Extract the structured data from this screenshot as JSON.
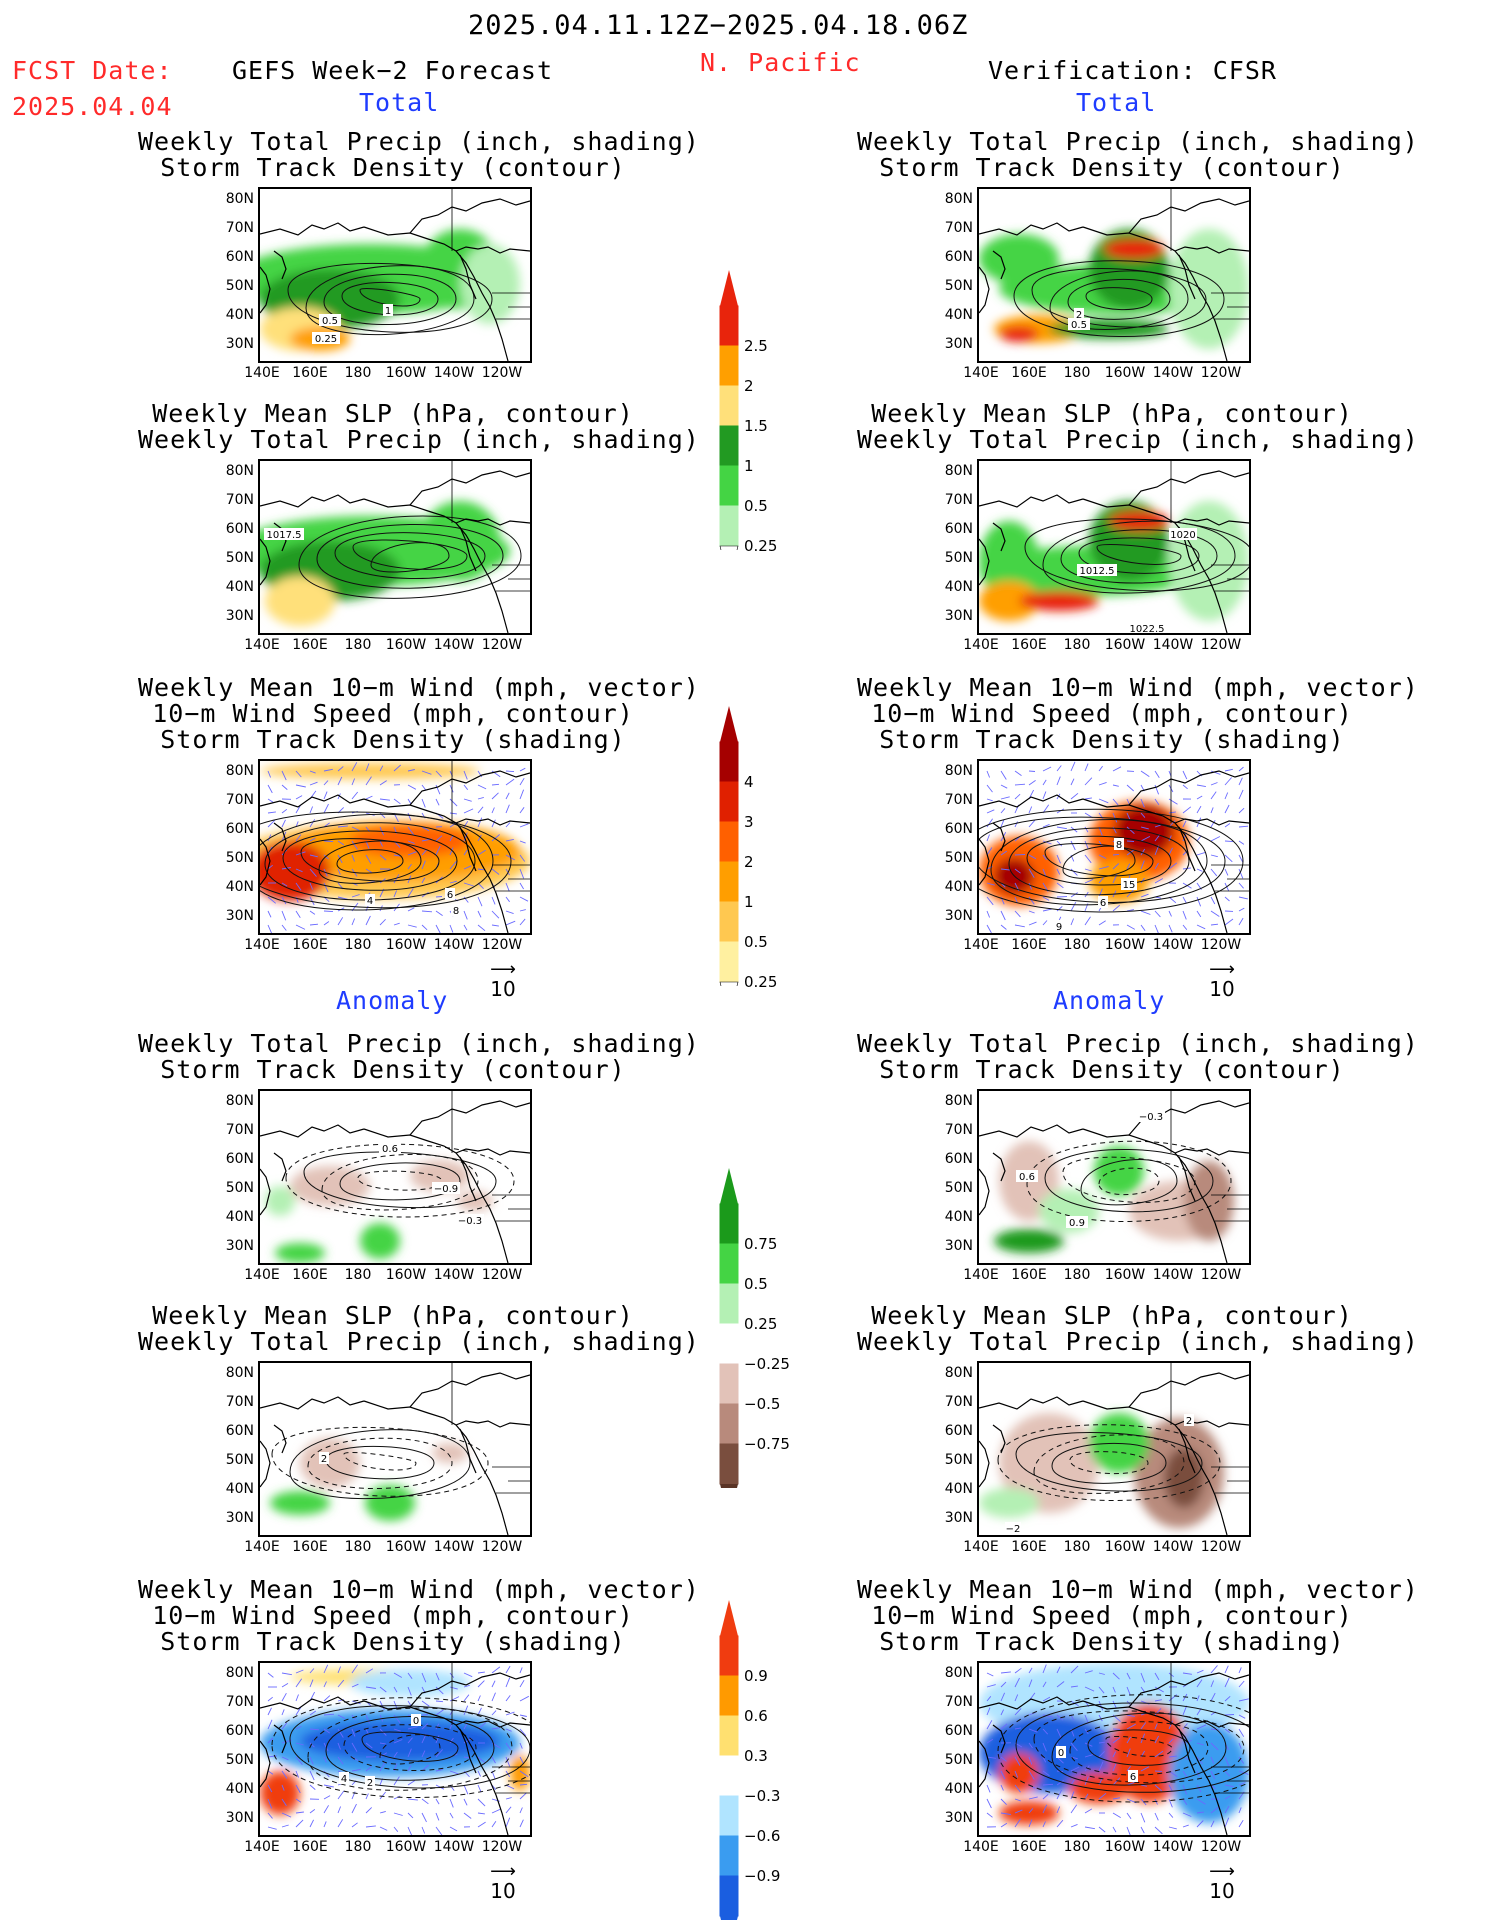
{
  "header": {
    "valid_period": "2025.04.11.12Z−2025.04.18.06Z",
    "fcst_date_label": "FCST Date:",
    "fcst_date": "2025.04.04",
    "model": "GEFS Week−2 Forecast",
    "region": "N. Pacific",
    "verification": "Verification: CFSR"
  },
  "sections": {
    "total": "Total",
    "anomaly": "Anomaly"
  },
  "titles": {
    "precip_track": [
      "Weekly Total Precip (inch, shading)",
      "Storm Track Density (contour)"
    ],
    "slp_precip": [
      "Weekly Mean SLP (hPa, contour)",
      "Weekly Total Precip (inch, shading)"
    ],
    "wind": [
      "Weekly Mean 10−m Wind (mph, vector)",
      "10−m Wind Speed (mph, contour)",
      "Storm Track Density (shading)"
    ]
  },
  "axes": {
    "lat_labels": [
      "80N",
      "70N",
      "60N",
      "50N",
      "40N",
      "30N"
    ],
    "lon_labels": [
      "140E",
      "160E",
      "180",
      "160W",
      "140W",
      "120W"
    ]
  },
  "vector_ref": "10",
  "colorbars": {
    "precip_total": {
      "labels": [
        "2.5",
        "2",
        "1.5",
        "1",
        "0.5",
        "0.25"
      ],
      "colors": [
        "#e8240c",
        "#ff9f00",
        "#ffe07a",
        "#229a22",
        "#44d444",
        "#b4f0b4"
      ]
    },
    "track_total": {
      "labels": [
        "4",
        "3",
        "2",
        "1",
        "0.5",
        "0.25"
      ],
      "colors": [
        "#a50000",
        "#e02000",
        "#ff6000",
        "#ff9e00",
        "#ffc850",
        "#fff0a0"
      ]
    },
    "precip_anom": {
      "labels": [
        "0.75",
        "0.5",
        "0.25",
        "−0.25",
        "−0.5",
        "−0.75"
      ],
      "colors": [
        "#1b9a1b",
        "#44d444",
        "#b4f0b4",
        "#ffffff",
        "#e2c2b8",
        "#b88a7c",
        "#7a4e3e"
      ]
    },
    "track_anom": {
      "labels": [
        "0.9",
        "0.6",
        "0.3",
        "−0.3",
        "−0.6",
        "−0.9"
      ],
      "colors": [
        "#f03c10",
        "#ff9a00",
        "#ffe070",
        "#ffffff",
        "#b0e4ff",
        "#3a9cf0",
        "#1a5ee0"
      ]
    }
  },
  "contour_labels": {
    "fc_total_precip": [
      "0.5",
      "1",
      "0.25"
    ],
    "fc_total_slp": [
      "1017.5"
    ],
    "fc_total_wind": [
      "4",
      "6",
      "8"
    ],
    "ver_total_precip": [
      "2",
      "0.5"
    ],
    "ver_total_slp": [
      "1020",
      "1012.5",
      "1022.5"
    ],
    "ver_total_wind": [
      "8",
      "15",
      "6",
      "9"
    ],
    "fc_anom_precip": [
      "0.6",
      "−0.9",
      "−0.3"
    ],
    "fc_anom_slp": [
      "2"
    ],
    "fc_anom_wind": [
      "0",
      "4",
      "2"
    ],
    "ver_anom_precip": [
      "−0.3",
      "0.6",
      "0.9"
    ],
    "ver_anom_slp": [
      "2",
      "−2"
    ],
    "ver_anom_wind": [
      "0",
      "6"
    ]
  }
}
